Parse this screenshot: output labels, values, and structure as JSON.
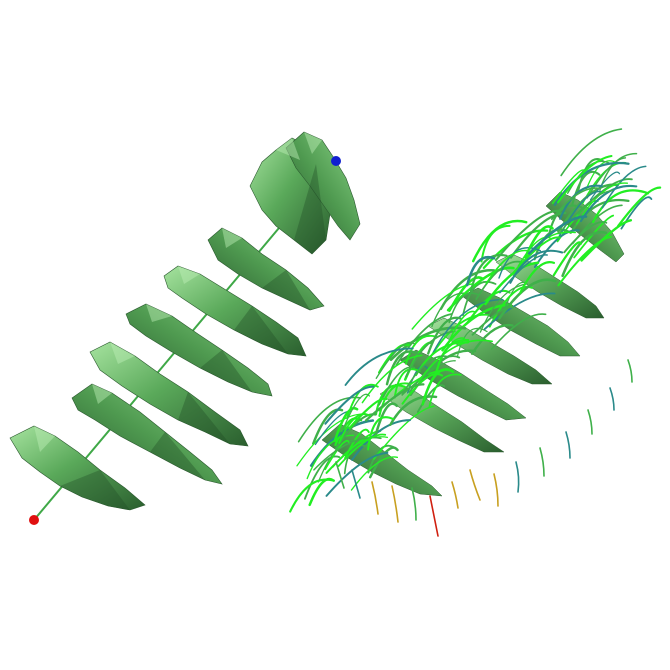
{
  "scene": {
    "background": "#ffffff",
    "colors": {
      "surface_light": "#8fd88a",
      "surface_mid": "#5aa95a",
      "surface_dark": "#2f6b33",
      "surface_shadow": "#1f4a24",
      "axis_line": "#3fa847",
      "start_marker": "#e01010",
      "end_marker": "#1020d0",
      "stream_bright": "#22ee22",
      "stream_mid": "#3fb04a",
      "stream_cool": "#2a8a8a",
      "stream_warm": "#c8a020",
      "stream_hot": "#d02010"
    }
  }
}
